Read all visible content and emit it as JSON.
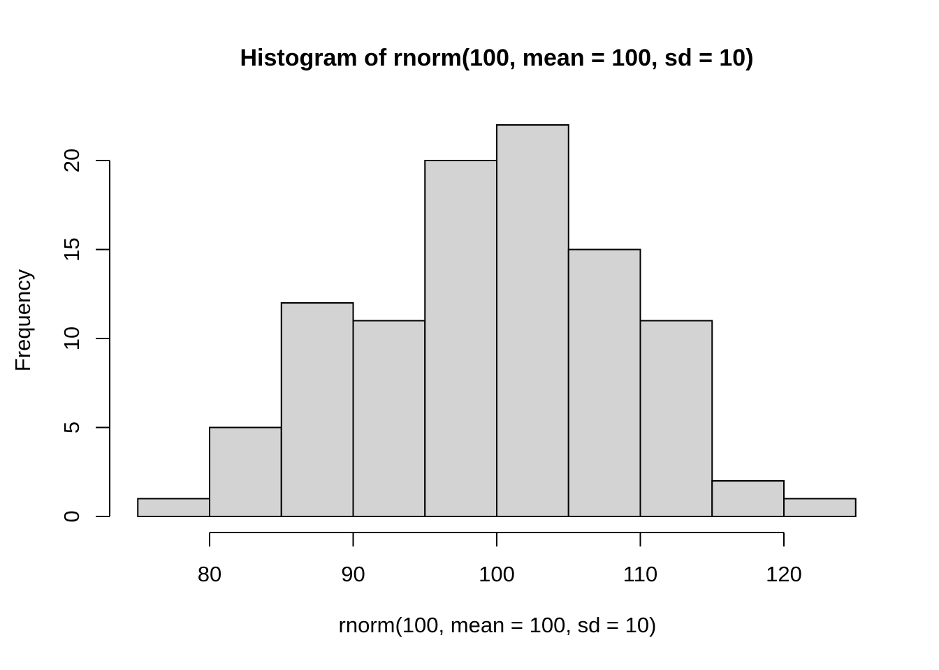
{
  "chart_data": {
    "type": "bar",
    "subtype": "histogram",
    "title": "Histogram of rnorm(100, mean = 100, sd = 10)",
    "xlabel": "rnorm(100, mean = 100, sd = 10)",
    "ylabel": "Frequency",
    "breaks": [
      75,
      80,
      85,
      90,
      95,
      100,
      105,
      110,
      115,
      120,
      125
    ],
    "counts": [
      1,
      5,
      12,
      11,
      20,
      22,
      15,
      11,
      2,
      1
    ],
    "x_ticks": [
      80,
      90,
      100,
      110,
      120
    ],
    "y_ticks": [
      0,
      5,
      10,
      15,
      20
    ],
    "xlim": [
      75,
      125
    ],
    "ylim": [
      0,
      22
    ],
    "grid": false,
    "legend": "none",
    "bar_fill": "#d3d3d3",
    "bar_stroke": "#000000",
    "axis_color": "#000000",
    "background": "#ffffff"
  }
}
